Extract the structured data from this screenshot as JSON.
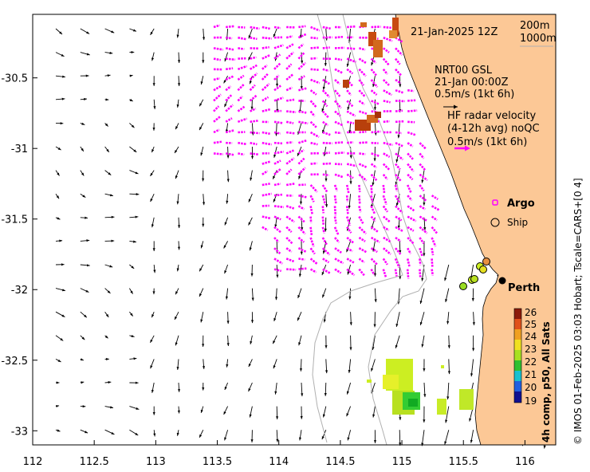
{
  "map": {
    "x_ticks": [
      "112",
      "112.5",
      "113",
      "113.5",
      "114",
      "114.5",
      "115",
      "115.5",
      "116"
    ],
    "y_ticks": [
      "-30.5",
      "-31",
      "-31.5",
      "-32",
      "-32.5",
      "-33"
    ],
    "xlim": [
      112,
      116.25
    ],
    "ylim": [
      -33.1,
      -30.05
    ],
    "date_label": "21-Jan-2025 12Z",
    "isobath_legend": [
      "200m",
      "1000m"
    ],
    "model_legend": [
      "NRT00 GSL",
      "21-Jan 00:00Z",
      "0.5m/s (1kt 6h)"
    ],
    "radar_legend": [
      "HF radar velocity",
      "(4-12h avg) noQC",
      "0.5m/s (1kt 6h)"
    ],
    "argo_label": "Argo",
    "ship_label": "Ship",
    "city_label": "Perth",
    "colorbar_title": "4h comp, p50, All Sats",
    "colorbar_ticks": [
      "26",
      "25",
      "24",
      "23",
      "22",
      "21",
      "20",
      "19"
    ],
    "credit": "© IMOS 01-Feb-2025 03:03 Hobart; Tscale=CARS+[0 4]",
    "colors": {
      "land": "#fcc896",
      "radar_arrow": "#ff00ff",
      "model_arrow": "#000000",
      "isobath": "#b0b0b0"
    }
  }
}
